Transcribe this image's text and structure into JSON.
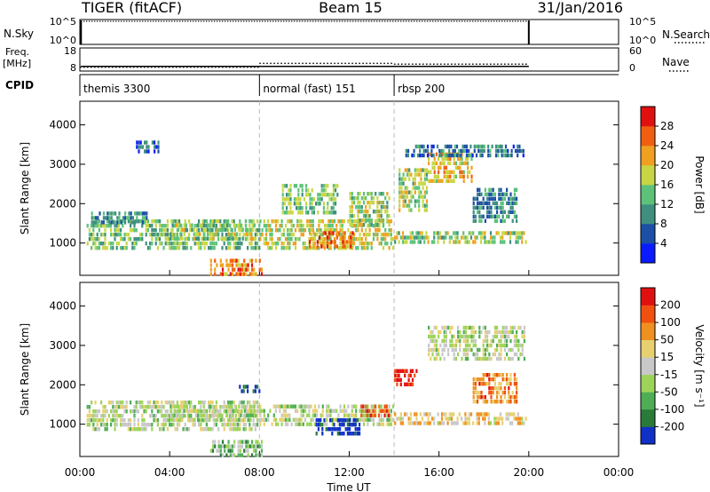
{
  "chart_data": [
    {
      "type": "heatmap",
      "title": "TIGER (fitACF)",
      "beam": "Beam 15",
      "date": "31/Jan/2016",
      "header_panels": {
        "sky": {
          "label": "N.Sky",
          "yticks": [
            "10^5",
            "10^0"
          ],
          "right_label": "N.Search",
          "right_ticks": [
            "10^5",
            "10^0"
          ]
        },
        "freq": {
          "label_line1": "Freq.",
          "label_line2": "[MHz]",
          "yticks": [
            "18",
            "8"
          ],
          "right_label": "Nave",
          "right_ticks": [
            "60",
            "0"
          ],
          "freq_mhz": 10,
          "nave": [
            {
              "t_start": 0,
              "t_end": 8,
              "value": 10
            },
            {
              "t_start": 8,
              "t_end": 14,
              "value": 20
            },
            {
              "t_start": 14,
              "t_end": 20,
              "value": 18
            }
          ]
        },
        "cpid": {
          "label": "CPID",
          "segments": [
            {
              "label": "themis 3300",
              "t_start": 0,
              "t_end": 8
            },
            {
              "label": "normal (fast) 151",
              "t_start": 8,
              "t_end": 14
            },
            {
              "label": "rbsp 200",
              "t_start": 14,
              "t_end": 20
            }
          ]
        }
      },
      "xlabel": "Time UT",
      "xticks": [
        "00:00",
        "04:00",
        "08:00",
        "12:00",
        "16:00",
        "20:00",
        "00:00"
      ],
      "xlim_hours": [
        0,
        24
      ],
      "panels": [
        {
          "name": "power",
          "ylabel": "Slant Range [km]",
          "yticks": [
            "1000",
            "2000",
            "3000",
            "4000"
          ],
          "ylim_km": [
            180,
            4600
          ],
          "colorbar_label": "Power [dB]",
          "colorbar_ticks": [
            "28",
            "24",
            "20",
            "16",
            "12",
            "8",
            "4"
          ],
          "colorbar_colors": [
            "#0a1cff",
            "#1c4fa6",
            "#3f8f7e",
            "#5cc27a",
            "#c8d645",
            "#f0a020",
            "#f05f10",
            "#e01010"
          ],
          "regions": [
            {
              "t": [
                0.3,
                8.0
              ],
              "r": [
                900,
                1600
              ],
              "level": 0.45
            },
            {
              "t": [
                0.5,
                3.0
              ],
              "r": [
                1500,
                1800
              ],
              "level": 0.3
            },
            {
              "t": [
                4.0,
                7.8
              ],
              "r": [
                1100,
                1500
              ],
              "level": 0.5
            },
            {
              "t": [
                5.8,
                8.1
              ],
              "r": [
                200,
                600
              ],
              "level": 0.75
            },
            {
              "t": [
                8.0,
                14.0
              ],
              "r": [
                900,
                1600
              ],
              "level": 0.55
            },
            {
              "t": [
                9.0,
                11.5
              ],
              "r": [
                1800,
                2500
              ],
              "level": 0.45
            },
            {
              "t": [
                10.2,
                12.2
              ],
              "r": [
                900,
                1300
              ],
              "level": 0.75
            },
            {
              "t": [
                12.0,
                13.8
              ],
              "r": [
                1500,
                2300
              ],
              "level": 0.5
            },
            {
              "t": [
                14.0,
                20.0
              ],
              "r": [
                1050,
                1300
              ],
              "level": 0.5
            },
            {
              "t": [
                14.2,
                15.5
              ],
              "r": [
                1800,
                2900
              ],
              "level": 0.5
            },
            {
              "t": [
                15.5,
                17.5
              ],
              "r": [
                2600,
                3300
              ],
              "level": 0.65
            },
            {
              "t": [
                14.5,
                19.8
              ],
              "r": [
                3200,
                3500
              ],
              "level": 0.25
            },
            {
              "t": [
                17.5,
                19.5
              ],
              "r": [
                1600,
                2400
              ],
              "level": 0.3
            },
            {
              "t": [
                2.5,
                3.5
              ],
              "r": [
                3300,
                3600
              ],
              "level": 0.2
            }
          ]
        },
        {
          "name": "velocity",
          "ylabel": "Slant Range [km]",
          "yticks": [
            "1000",
            "2000",
            "3000",
            "4000"
          ],
          "ylim_km": [
            180,
            4600
          ],
          "colorbar_label": "Velocity [m s⁻¹]",
          "colorbar_ticks": [
            "200",
            "100",
            "50",
            "15",
            "-15",
            "-50",
            "-100",
            "-200"
          ],
          "colorbar_colors": [
            "#1030c8",
            "#2a7a3a",
            "#4fae55",
            "#9ed35a",
            "#c8c8c8",
            "#e8d070",
            "#f09020",
            "#f05010",
            "#e01010"
          ],
          "regions": [
            {
              "t": [
                0.3,
                8.0
              ],
              "r": [
                900,
                1600
              ],
              "level": 0.45
            },
            {
              "t": [
                4.0,
                7.8
              ],
              "r": [
                1100,
                1500
              ],
              "level": 0.45
            },
            {
              "t": [
                5.8,
                8.1
              ],
              "r": [
                200,
                600
              ],
              "level": 0.35
            },
            {
              "t": [
                8.0,
                14.0
              ],
              "r": [
                1000,
                1500
              ],
              "level": 0.45
            },
            {
              "t": [
                10.5,
                12.5
              ],
              "r": [
                800,
                1150
              ],
              "level": 0.0
            },
            {
              "t": [
                12.5,
                13.8
              ],
              "r": [
                1200,
                1500
              ],
              "level": 0.9
            },
            {
              "t": [
                14.0,
                15.0
              ],
              "r": [
                2000,
                2400
              ],
              "level": 0.95
            },
            {
              "t": [
                17.5,
                19.5
              ],
              "r": [
                1600,
                2300
              ],
              "level": 0.75
            },
            {
              "t": [
                14.0,
                20.0
              ],
              "r": [
                1000,
                1300
              ],
              "level": 0.6
            },
            {
              "t": [
                15.5,
                19.8
              ],
              "r": [
                2600,
                3500
              ],
              "level": 0.45
            },
            {
              "t": [
                7.0,
                8.0
              ],
              "r": [
                1800,
                2000
              ],
              "level": 0.05
            }
          ]
        }
      ]
    }
  ]
}
